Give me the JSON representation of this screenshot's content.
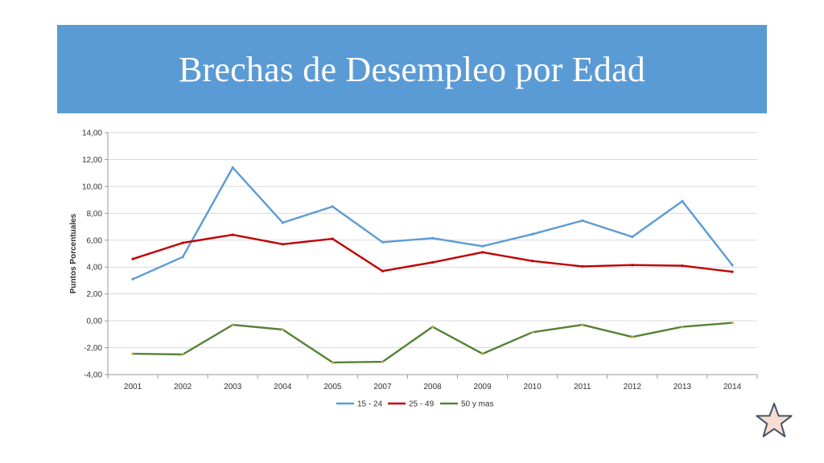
{
  "header": {
    "title": "Brechas de Desempleo por Edad"
  },
  "colors": {
    "banner": "#5b9bd5",
    "series": [
      "#5b9bd5",
      "#c00000",
      "#548235"
    ],
    "grid": "#d9d9d9",
    "star_fill": "#f8ddd0",
    "star_stroke": "#44546a"
  },
  "icons": {
    "corner": "star-icon"
  },
  "chart_data": {
    "type": "line",
    "title": "",
    "xlabel": "",
    "ylabel": "Puntos Porcentuales",
    "categories": [
      "2001",
      "2002",
      "2003",
      "2004",
      "2005",
      "2007",
      "2008",
      "2009",
      "2010",
      "2011",
      "2012",
      "2013",
      "2014"
    ],
    "ylim": [
      -4,
      14
    ],
    "yticks": [
      "-4,00",
      "-2,00",
      "0,00",
      "2,00",
      "4,00",
      "6,00",
      "8,00",
      "10,00",
      "12,00",
      "14,00"
    ],
    "grid": true,
    "legend_position": "bottom",
    "series": [
      {
        "name": "15 - 24",
        "values": [
          3.1,
          4.75,
          11.4,
          7.3,
          8.5,
          5.85,
          6.15,
          5.55,
          6.45,
          7.45,
          6.25,
          8.9,
          4.15
        ]
      },
      {
        "name": "25 - 49",
        "values": [
          4.6,
          5.8,
          6.4,
          5.7,
          6.1,
          3.7,
          4.35,
          5.1,
          4.45,
          4.05,
          4.15,
          4.1,
          3.65
        ]
      },
      {
        "name": "50 y mas",
        "values": [
          -2.45,
          -2.5,
          -0.3,
          -0.65,
          -3.1,
          -3.05,
          -0.45,
          -2.45,
          -0.85,
          -0.3,
          -1.2,
          -0.45,
          -0.15
        ]
      }
    ]
  }
}
